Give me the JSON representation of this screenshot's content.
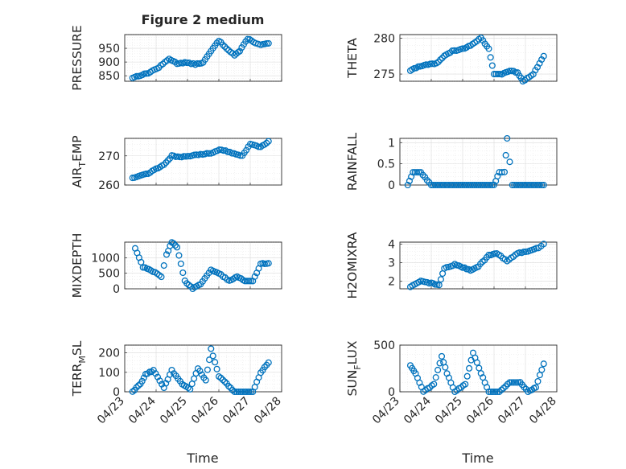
{
  "figure": {
    "title": "Figure 2 medium",
    "xlabel": "Time"
  },
  "series_color": "#0072BD",
  "chart_data": [
    {
      "type": "scatter",
      "ylabel": "PRESSURE",
      "x": [
        "04/23 06:00",
        "04/23 18:00",
        "04/24 02:00",
        "04/24 10:00",
        "04/24 16:00",
        "04/24 22:00",
        "04/25 06:00",
        "04/25 12:00",
        "04/25 18:00",
        "04/26 00:00",
        "04/26 06:00",
        "04/26 12:00",
        "04/26 16:00",
        "04/26 22:00",
        "04/27 04:00",
        "04/27 08:00",
        "04/27 14:00"
      ],
      "y": [
        843,
        860,
        880,
        912,
        895,
        898,
        892,
        898,
        940,
        978,
        950,
        925,
        940,
        985,
        970,
        962,
        968
      ],
      "ylim": [
        830,
        1000
      ],
      "yticks": [
        850,
        900,
        950
      ],
      "xticks": [
        "04/23",
        "04/24",
        "04/25",
        "04/26",
        "04/27",
        "04/28"
      ]
    },
    {
      "type": "scatter",
      "ylabel": "THETA",
      "x": [
        "04/23 08:00",
        "04/23 14:00",
        "04/23 20:00",
        "04/24 04:00",
        "04/24 10:00",
        "04/24 16:00",
        "04/25 00:00",
        "04/25 06:00",
        "04/25 14:00",
        "04/25 20:00",
        "04/26 00:00",
        "04/26 06:00",
        "04/26 12:00",
        "04/26 18:00",
        "04/26 22:00",
        "04/27 06:00",
        "04/27 14:00"
      ],
      "y": [
        275.5,
        276,
        276.3,
        276.5,
        277.5,
        278.2,
        278.5,
        279,
        280,
        278.5,
        275,
        275,
        275.5,
        275.2,
        274,
        275,
        277.5
      ],
      "ylim": [
        274,
        280.5
      ],
      "yticks": [
        275,
        280
      ],
      "xticks": [
        "04/23",
        "04/24",
        "04/25",
        "04/26",
        "04/27",
        "04/28"
      ]
    },
    {
      "type": "scatter",
      "ylabel": "AIR_TEMP",
      "x": [
        "04/23 06:00",
        "04/23 18:00",
        "04/24 06:00",
        "04/24 12:00",
        "04/24 18:00",
        "04/25 02:00",
        "04/25 10:00",
        "04/25 18:00",
        "04/26 02:00",
        "04/26 10:00",
        "04/26 18:00",
        "04/27 00:00",
        "04/27 08:00",
        "04/27 14:00"
      ],
      "y": [
        262.5,
        264,
        267,
        270,
        269.5,
        270,
        270.5,
        271,
        272.2,
        271,
        270,
        274,
        273,
        275
      ],
      "ylim": [
        260,
        276
      ],
      "yticks": [
        260,
        270
      ],
      "xticks": [
        "04/23",
        "04/24",
        "04/25",
        "04/26",
        "04/27",
        "04/28"
      ]
    },
    {
      "type": "scatter",
      "ylabel": "RAINFALL",
      "x": [
        "04/23 06:00",
        "04/23 10:00",
        "04/23 16:00",
        "04/24 00:00",
        "04/24 12:00",
        "04/25 00:00",
        "04/25 12:00",
        "04/26 00:00",
        "04/26 04:00",
        "04/26 08:00",
        "04/26 10:00",
        "04/26 14:00",
        "04/26 20:00",
        "04/27 08:00",
        "04/27 14:00"
      ],
      "y": [
        0,
        0.3,
        0.3,
        0,
        0,
        0,
        0,
        0,
        0.3,
        0.3,
        1.1,
        0,
        0,
        0,
        0
      ],
      "ylim": [
        0,
        1.1
      ],
      "yticks": [
        0,
        0.5,
        1
      ],
      "xticks": [
        "04/23",
        "04/24",
        "04/25",
        "04/26",
        "04/27",
        "04/28"
      ]
    },
    {
      "type": "scatter",
      "ylabel": "MIXDEPTH",
      "x": [
        "04/23 08:00",
        "04/23 14:00",
        "04/23 20:00",
        "04/24 04:00",
        "04/24 08:00",
        "04/24 12:00",
        "04/24 16:00",
        "04/24 22:00",
        "04/25 04:00",
        "04/25 10:00",
        "04/25 18:00",
        "04/26 00:00",
        "04/26 08:00",
        "04/26 14:00",
        "04/26 20:00",
        "04/27 02:00",
        "04/27 08:00",
        "04/27 14:00"
      ],
      "y": [
        1300,
        700,
        600,
        400,
        1100,
        1500,
        1350,
        250,
        0,
        150,
        600,
        500,
        250,
        400,
        250,
        250,
        800,
        820
      ],
      "ylim": [
        0,
        1500
      ],
      "yticks": [
        0,
        500,
        1000
      ],
      "xticks": [
        "04/23",
        "04/24",
        "04/25",
        "04/26",
        "04/27",
        "04/28"
      ]
    },
    {
      "type": "scatter",
      "ylabel": "H2OMIXRA",
      "x": [
        "04/23 08:00",
        "04/23 16:00",
        "04/24 00:00",
        "04/24 06:00",
        "04/24 10:00",
        "04/24 18:00",
        "04/25 06:00",
        "04/25 12:00",
        "04/25 20:00",
        "04/26 02:00",
        "04/26 10:00",
        "04/26 18:00",
        "04/27 02:00",
        "04/27 10:00",
        "04/27 14:00"
      ],
      "y": [
        1.7,
        2,
        1.9,
        1.8,
        2.7,
        2.9,
        2.6,
        2.8,
        3.4,
        3.5,
        3.1,
        3.5,
        3.6,
        3.8,
        4
      ],
      "ylim": [
        1.6,
        4.1
      ],
      "yticks": [
        2,
        3,
        4
      ],
      "xticks": [
        "04/23",
        "04/24",
        "04/25",
        "04/26",
        "04/27",
        "04/28"
      ]
    },
    {
      "type": "scatter",
      "ylabel": "TERR_MSL",
      "x": [
        "04/23 06:00",
        "04/23 12:00",
        "04/23 16:00",
        "04/23 22:00",
        "04/24 06:00",
        "04/24 12:00",
        "04/24 20:00",
        "04/25 02:00",
        "04/25 08:00",
        "04/25 14:00",
        "04/25 18:00",
        "04/26 00:00",
        "04/26 12:00",
        "04/26 20:00",
        "04/27 02:00",
        "04/27 08:00",
        "04/27 14:00"
      ],
      "y": [
        0,
        40,
        90,
        110,
        20,
        110,
        40,
        15,
        120,
        60,
        220,
        80,
        0,
        0,
        0,
        100,
        150
      ],
      "ylim": [
        0,
        240
      ],
      "yticks": [
        0,
        100,
        200
      ],
      "xticks": [
        "04/23",
        "04/24",
        "04/25",
        "04/26",
        "04/27",
        "04/28"
      ]
    },
    {
      "type": "scatter",
      "ylabel": "SUN_FLUX",
      "x": [
        "04/23 08:00",
        "04/23 12:00",
        "04/23 18:00",
        "04/24 02:00",
        "04/24 08:00",
        "04/24 12:00",
        "04/24 18:00",
        "04/25 02:00",
        "04/25 08:00",
        "04/25 14:00",
        "04/25 20:00",
        "04/26 04:00",
        "04/26 12:00",
        "04/26 20:00",
        "04/27 02:00",
        "04/27 08:00",
        "04/27 14:00"
      ],
      "y": [
        280,
        200,
        0,
        80,
        380,
        200,
        0,
        80,
        420,
        200,
        0,
        0,
        100,
        100,
        0,
        50,
        300
      ],
      "ylim": [
        0,
        500
      ],
      "yticks": [
        0,
        500
      ],
      "xticks": [
        "04/23",
        "04/24",
        "04/25",
        "04/26",
        "04/27",
        "04/28"
      ]
    }
  ]
}
